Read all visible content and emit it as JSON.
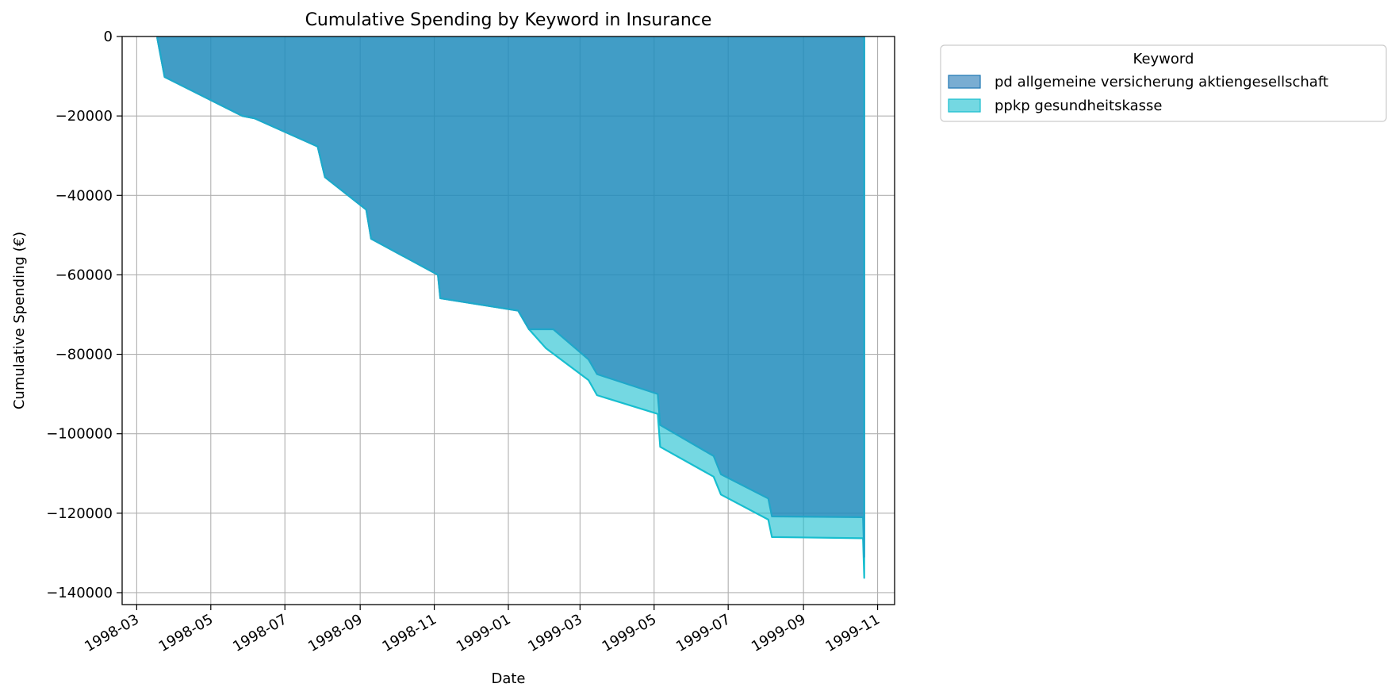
{
  "chart_data": {
    "type": "area",
    "title": "Cumulative Spending by Keyword in Insurance",
    "xlabel": "Date",
    "ylabel": "Cumulative Spending (€)",
    "xlim": [
      "1998-02-17",
      "1999-11-15"
    ],
    "ylim": [
      -143000,
      0
    ],
    "grid": true,
    "x_ticks": [
      "1998-03",
      "1998-05",
      "1998-07",
      "1998-09",
      "1998-11",
      "1999-01",
      "1999-03",
      "1999-05",
      "1999-07",
      "1999-09",
      "1999-11"
    ],
    "y_ticks": [
      0,
      -20000,
      -40000,
      -60000,
      -80000,
      -100000,
      -120000,
      -140000
    ],
    "y_tick_labels": [
      "0",
      "−20000",
      "−40000",
      "−60000",
      "−80000",
      "−100000",
      "−120000",
      "−140000"
    ],
    "legend": {
      "title": "Keyword",
      "placement": "outside upper right"
    },
    "series": [
      {
        "name": "pd allgemeine versicherung aktiengesellschaft",
        "color": "#1f77b4",
        "points": [
          [
            "1998-03-18",
            -500
          ],
          [
            "1998-03-24",
            -10200
          ],
          [
            "1998-05-27",
            -20000
          ],
          [
            "1998-06-06",
            -20600
          ],
          [
            "1998-07-28",
            -27700
          ],
          [
            "1998-08-03",
            -35400
          ],
          [
            "1998-09-06",
            -43600
          ],
          [
            "1998-09-10",
            -50900
          ],
          [
            "1998-11-04",
            -60000
          ],
          [
            "1998-11-06",
            -65900
          ],
          [
            "1999-01-09",
            -69000
          ],
          [
            "1999-01-18",
            -73700
          ],
          [
            "1999-02-07",
            -73700
          ],
          [
            "1999-03-08",
            -81300
          ],
          [
            "1999-03-15",
            -85000
          ],
          [
            "1999-05-04",
            -90000
          ],
          [
            "1999-05-06",
            -97800
          ],
          [
            "1999-06-19",
            -105600
          ],
          [
            "1999-06-25",
            -110200
          ],
          [
            "1999-08-03",
            -116300
          ],
          [
            "1999-08-06",
            -120800
          ],
          [
            "1999-10-20",
            -121000
          ],
          [
            "1999-10-21",
            -131000
          ]
        ]
      },
      {
        "name": "ppkp gesundheitskasse",
        "color": "#17becf",
        "points": [
          [
            "1998-03-18",
            -500
          ],
          [
            "1998-03-24",
            -10200
          ],
          [
            "1998-05-27",
            -20000
          ],
          [
            "1998-06-06",
            -20600
          ],
          [
            "1998-07-28",
            -27700
          ],
          [
            "1998-08-03",
            -35400
          ],
          [
            "1998-09-06",
            -43600
          ],
          [
            "1998-09-10",
            -50900
          ],
          [
            "1998-11-04",
            -60000
          ],
          [
            "1998-11-06",
            -65900
          ],
          [
            "1999-01-09",
            -69000
          ],
          [
            "1999-01-18",
            -73700
          ],
          [
            "1999-02-01",
            -78500
          ],
          [
            "1999-03-08",
            -86500
          ],
          [
            "1999-03-15",
            -90300
          ],
          [
            "1999-05-04",
            -95000
          ],
          [
            "1999-05-06",
            -103300
          ],
          [
            "1999-06-19",
            -110800
          ],
          [
            "1999-06-25",
            -115300
          ],
          [
            "1999-08-03",
            -121600
          ],
          [
            "1999-08-06",
            -126000
          ],
          [
            "1999-10-20",
            -126300
          ],
          [
            "1999-10-21",
            -136300
          ]
        ]
      }
    ]
  }
}
